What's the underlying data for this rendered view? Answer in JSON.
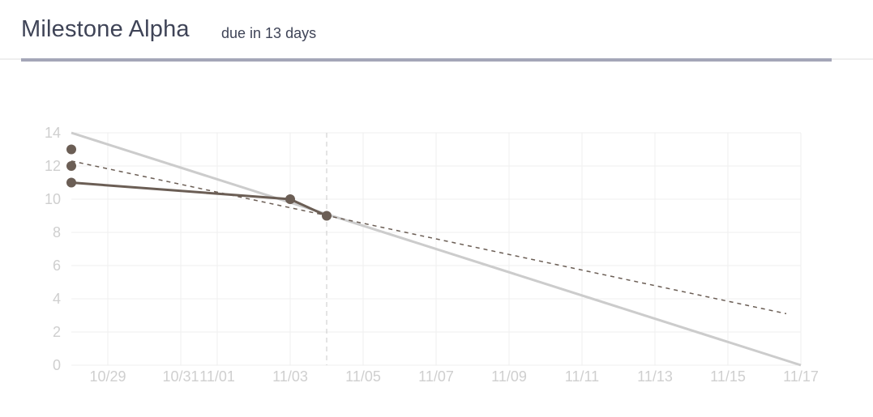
{
  "header": {
    "title": "Milestone Alpha",
    "subtitle": "due in 13 days"
  },
  "chart_data": {
    "type": "line",
    "title": "",
    "xlabel": "",
    "ylabel": "",
    "ylim": [
      0,
      14
    ],
    "yticks": [
      "0",
      "2",
      "4",
      "6",
      "8",
      "10",
      "12",
      "14"
    ],
    "xlim": [
      "2016-10-28",
      "2016-11-17"
    ],
    "xticks": [
      {
        "date": "2016-10-29",
        "label": "10/29"
      },
      {
        "date": "2016-10-31",
        "label": "10/31"
      },
      {
        "date": "2016-11-01",
        "label": "11/01"
      },
      {
        "date": "2016-11-03",
        "label": "11/03"
      },
      {
        "date": "2016-11-05",
        "label": "11/05"
      },
      {
        "date": "2016-11-07",
        "label": "11/07"
      },
      {
        "date": "2016-11-09",
        "label": "11/09"
      },
      {
        "date": "2016-11-11",
        "label": "11/11"
      },
      {
        "date": "2016-11-13",
        "label": "11/13"
      },
      {
        "date": "2016-11-15",
        "label": "11/15"
      },
      {
        "date": "2016-11-17",
        "label": "11/17"
      }
    ],
    "grid": true,
    "today": "2016-11-04",
    "series": [
      {
        "role": "ideal",
        "style": "solid",
        "color": "#cccccc",
        "points": [
          {
            "x": "2016-10-28",
            "y": 14
          },
          {
            "x": "2016-11-17",
            "y": 0
          }
        ]
      },
      {
        "role": "trend",
        "style": "dashed",
        "color": "#6b5e55",
        "points": [
          {
            "x": "2016-10-28",
            "y": 12.3
          },
          {
            "x": "2016-11-16.6",
            "y": 3.1
          }
        ]
      },
      {
        "role": "actual",
        "style": "solid",
        "color": "#6b5e55",
        "markers": true,
        "points": [
          {
            "x": "2016-10-28",
            "y": 11
          },
          {
            "x": "2016-11-03",
            "y": 10
          },
          {
            "x": "2016-11-04",
            "y": 9
          }
        ]
      }
    ],
    "extra_points": [
      {
        "x": "2016-10-28",
        "y": 13
      },
      {
        "x": "2016-10-28",
        "y": 12
      }
    ]
  }
}
